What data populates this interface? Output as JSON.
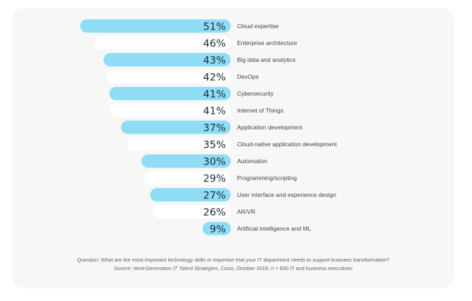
{
  "chart_data": {
    "type": "bar",
    "orientation": "horizontal",
    "title": "",
    "xlabel": "",
    "ylabel": "",
    "value_suffix": "%",
    "categories": [
      "Cloud expertise",
      "Enterprise architecture",
      "Big data and analytics",
      "DevOps",
      "Cybersecurity",
      "Internet of Things",
      "Application development",
      "Cloud-native application development",
      "Automation",
      "Programming/scripting",
      "User interface and experience design",
      "AR/VR",
      "Artificial intelligence and ML"
    ],
    "values": [
      51,
      46,
      43,
      42,
      41,
      41,
      37,
      35,
      30,
      29,
      27,
      26,
      9
    ],
    "bar_colors": [
      "#8fdcf5",
      "#ffffff"
    ],
    "bar_color_pattern": "alternating",
    "grid": false,
    "legend": "none"
  },
  "footnote": {
    "question": "Question: What are the most important technology skills or expertise that your IT department needs to support business transformation?",
    "source_prefix": "Source: ",
    "source_title": "Next-Generation IT Talent Strategies",
    "source_rest": ", Cisco, October 2018; n = 600 IT and business executives"
  },
  "colors": {
    "card_background": "#f7f7f7",
    "highlight_bar": "#8fdcf5",
    "plain_bar": "#ffffff",
    "value_text": "#1e2b3a",
    "label_text": "#3f4346"
  }
}
